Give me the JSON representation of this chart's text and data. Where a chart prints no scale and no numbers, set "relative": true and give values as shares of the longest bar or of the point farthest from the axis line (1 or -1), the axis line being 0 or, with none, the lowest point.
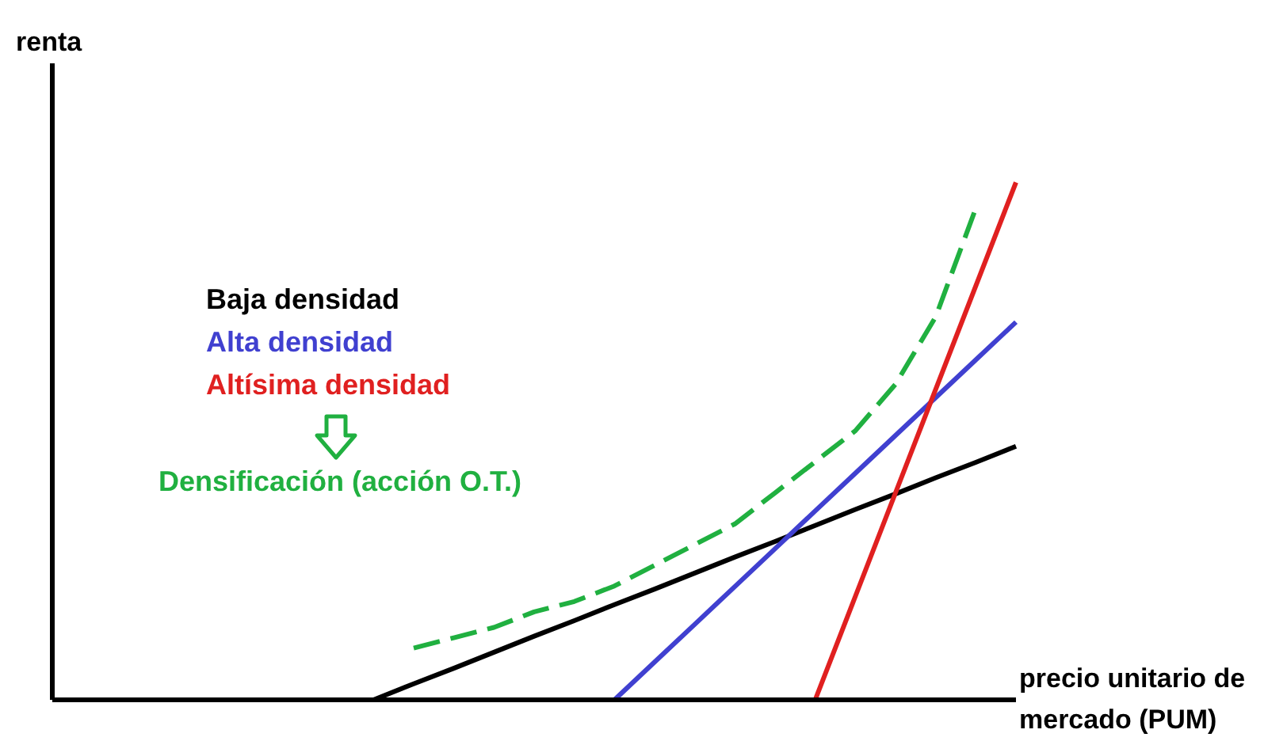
{
  "chart_data": {
    "type": "line",
    "relative": true,
    "tick_labels": false,
    "ylabel": "renta",
    "xlabel": "precio unitario de mercado (PUM)",
    "legend": "left",
    "marker": "none",
    "categories": [
      null,
      null,
      null,
      null,
      null,
      null,
      null,
      null,
      null,
      null,
      null,
      null,
      null,
      null,
      null,
      null,
      null,
      null,
      null,
      null,
      null,
      null,
      null,
      null,
      null
    ],
    "series": [
      {
        "name": "Baja densidad",
        "color": "#000000",
        "values": [
          null,
          null,
          null,
          null,
          null,
          null,
          null,
          null,
          0,
          0.031,
          0.061,
          0.092,
          0.123,
          0.153,
          0.184,
          0.214,
          0.245,
          0.276,
          0.306,
          0.337,
          0.368,
          0.398,
          0.429,
          0.459,
          0.49
        ]
      },
      {
        "name": "Alta densidad",
        "color": "#4040d0",
        "values": [
          null,
          null,
          null,
          null,
          null,
          null,
          null,
          null,
          null,
          null,
          null,
          null,
          null,
          null,
          0,
          0.073,
          0.146,
          0.219,
          0.292,
          0.365,
          0.438,
          0.511,
          0.584,
          0.657,
          0.73
        ]
      },
      {
        "name": "Altísima densidad",
        "color": "#e02020",
        "values": [
          null,
          null,
          null,
          null,
          null,
          null,
          null,
          null,
          null,
          null,
          null,
          null,
          null,
          null,
          null,
          null,
          null,
          null,
          null,
          0,
          0.2,
          0.4,
          0.6,
          0.8,
          1.0
        ]
      },
      {
        "name": "Densificación (acción O.T.)",
        "color": "#20b040",
        "line_style": "dashed",
        "values": [
          null,
          null,
          null,
          null,
          null,
          null,
          null,
          null,
          null,
          0.1,
          0.12,
          0.14,
          0.17,
          0.19,
          0.22,
          0.26,
          0.3,
          0.34,
          0.4,
          0.46,
          0.52,
          0.61,
          0.74,
          0.95,
          null
        ]
      }
    ]
  }
}
